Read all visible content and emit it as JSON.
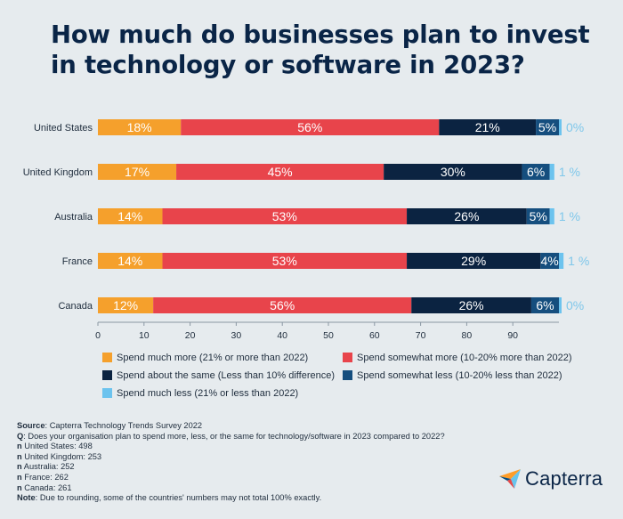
{
  "title": "How much do businesses plan to invest in technology or software in 2023?",
  "chart_data": {
    "type": "bar",
    "orientation": "horizontal",
    "stacked": true,
    "categories": [
      "United States",
      "United Kingdom",
      "Australia",
      "France",
      "Canada"
    ],
    "series": [
      {
        "name": "Spend much more (21% or more than 2022)",
        "color": "#f5a02c",
        "values": [
          18,
          17,
          14,
          14,
          12
        ]
      },
      {
        "name": "Spend somewhat more (10-20% more than 2022)",
        "color": "#e8444b",
        "values": [
          56,
          45,
          53,
          53,
          56
        ]
      },
      {
        "name": "Spend about the same (Less than 10% difference)",
        "color": "#0b2341",
        "values": [
          21,
          30,
          26,
          29,
          26
        ]
      },
      {
        "name": "Spend somewhat less (10-20% less than 2022)",
        "color": "#154e7e",
        "values": [
          5,
          6,
          5,
          4,
          6
        ]
      },
      {
        "name": "Spend much less (21% or less than 2022)",
        "color": "#6cc3ee",
        "values": [
          0,
          1,
          1,
          1,
          0
        ]
      }
    ],
    "segment_labels": [
      [
        "18%",
        "56%",
        "21%",
        "5%",
        "0%"
      ],
      [
        "17%",
        "45%",
        "30%",
        "6%",
        "1 %"
      ],
      [
        "14%",
        "53%",
        "26%",
        "5%",
        "1 %"
      ],
      [
        "14%",
        "53%",
        "29%",
        "4%",
        "1 %"
      ],
      [
        "12%",
        "56%",
        "26%",
        "6%",
        "0%"
      ]
    ],
    "xlim": [
      0,
      100
    ],
    "xticks": [
      0,
      10,
      20,
      30,
      40,
      50,
      60,
      70,
      80,
      90
    ],
    "grid": false,
    "legend_position": "bottom"
  },
  "notes": {
    "source_label": "Source",
    "source_text": ": Capterra Technology Trends Survey 2022",
    "q_label": "Q",
    "q_text": ": Does your organisation plan to spend more, less, or the same for technology/software in 2023 compared to 2022?",
    "samples": [
      {
        "label": "n",
        "text": " United States: 498"
      },
      {
        "label": "n",
        "text": " United Kingdom: 253"
      },
      {
        "label": "n",
        "text": " Australia: 252"
      },
      {
        "label": "n",
        "text": " France: 262"
      },
      {
        "label": "n",
        "text": " Canada: 261"
      }
    ],
    "note_label": "Note",
    "note_text": ": Due to rounding, some of the countries' numbers may not total 100% exactly."
  },
  "brand": {
    "name": "Capterra",
    "icon": "capterra-arrow-logo"
  }
}
